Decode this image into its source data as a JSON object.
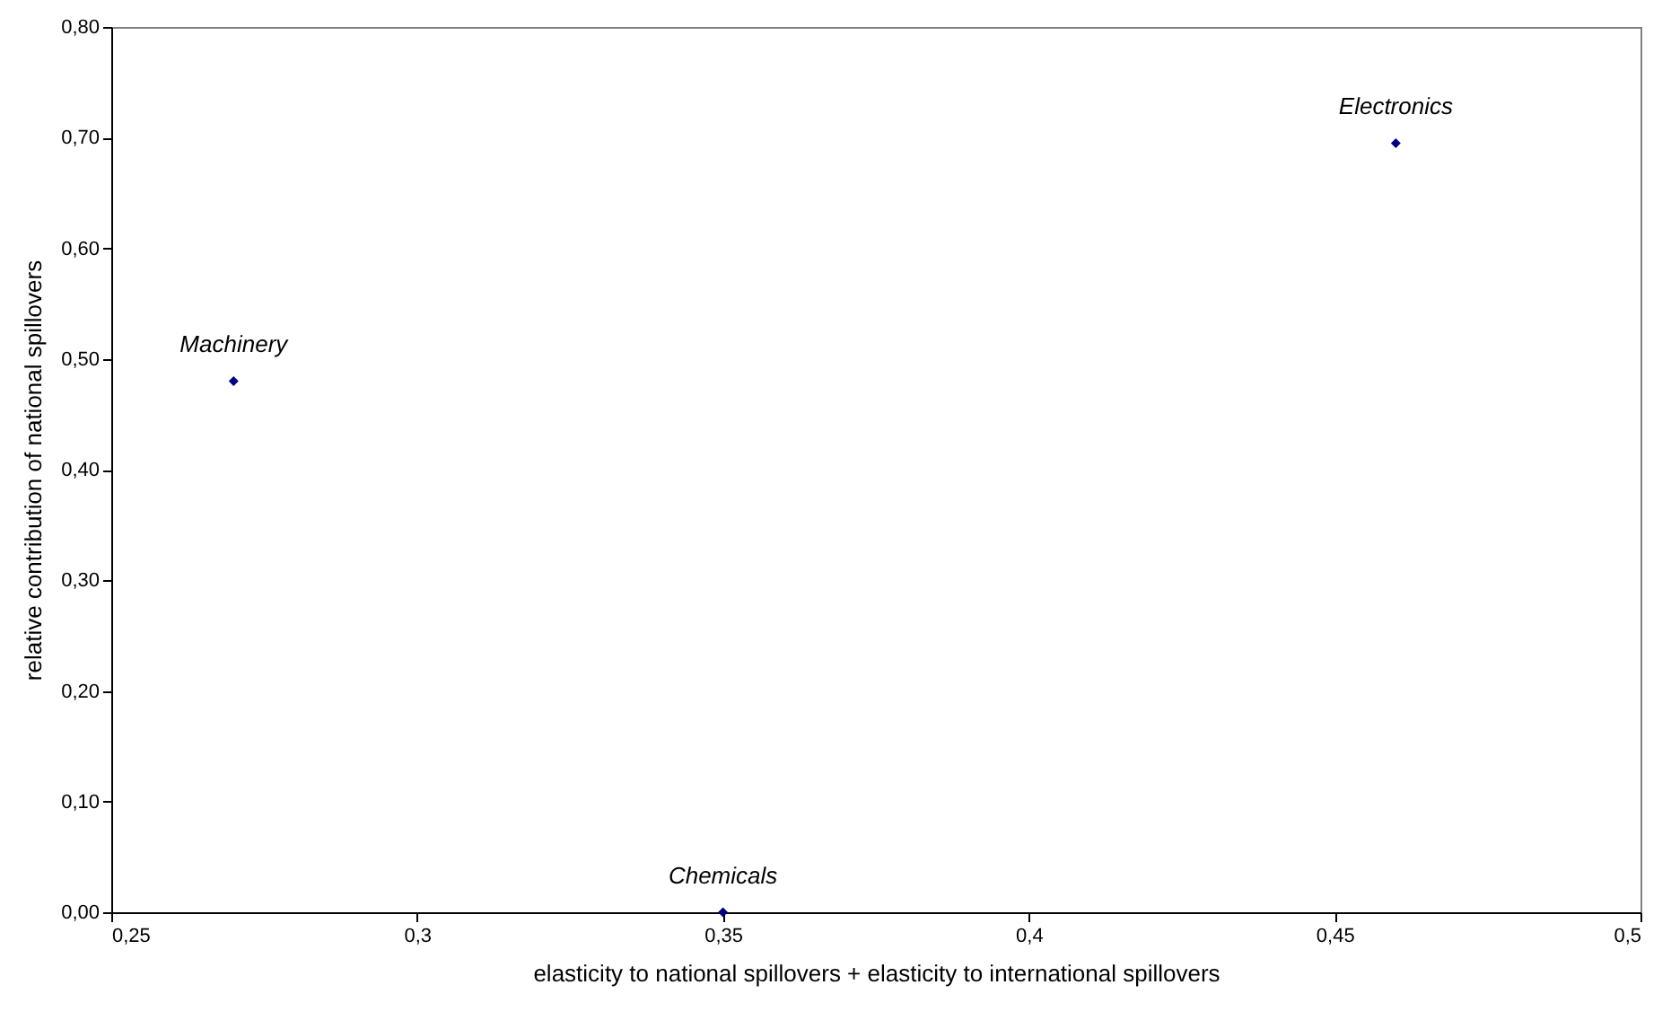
{
  "chart_data": {
    "type": "scatter",
    "xlabel": "elasticity to national spillovers + elasticity to international spillovers",
    "ylabel": "relative contribution of national spillovers",
    "x": [
      0.27,
      0.35,
      0.46
    ],
    "series": [
      {
        "color": "#000080",
        "values": [
          0.48,
          0.0,
          0.695
        ]
      }
    ],
    "marker": "diamond",
    "grid": false,
    "xlim": [
      0.25,
      0.5
    ],
    "xticks": [
      {
        "value": 0.25,
        "label": "0,25"
      },
      {
        "value": 0.3,
        "label": "0,3"
      },
      {
        "value": 0.35,
        "label": "0,35"
      },
      {
        "value": 0.4,
        "label": "0,4"
      },
      {
        "value": 0.45,
        "label": "0,45"
      },
      {
        "value": 0.5,
        "label": "0,5"
      }
    ],
    "ylim": [
      0,
      0.8
    ],
    "yticks": [
      {
        "value": 0,
        "label": "0,00"
      },
      {
        "value": 0.1,
        "label": "0,10"
      },
      {
        "value": 0.2,
        "label": "0,20"
      },
      {
        "value": 0.3,
        "label": "0,30"
      },
      {
        "value": 0.4,
        "label": "0,40"
      },
      {
        "value": 0.5,
        "label": "0,50"
      },
      {
        "value": 0.6,
        "label": "0,60"
      },
      {
        "value": 0.7,
        "label": "0,70"
      },
      {
        "value": 0.8,
        "label": "0,80"
      }
    ],
    "annotations": [
      {
        "text": "Machinery",
        "x": 0.27,
        "y": 0.48
      },
      {
        "text": "Chemicals",
        "x": 0.35,
        "y": 0.0
      },
      {
        "text": "Electronics",
        "x": 0.46,
        "y": 0.695
      }
    ]
  }
}
